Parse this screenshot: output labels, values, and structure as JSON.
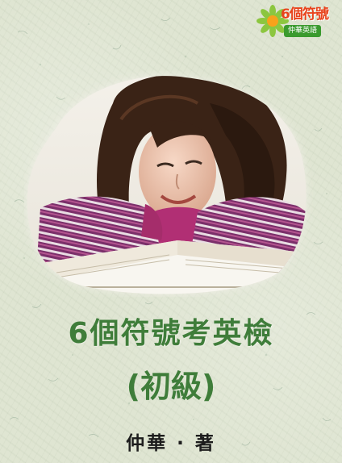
{
  "logo": {
    "title": "6個符號",
    "subtitle": "仲華英語",
    "icon": "sunflower-icon",
    "colors": {
      "petals": "#8cc63f",
      "center": "#f7a21b",
      "title": "#e8431c",
      "badge": "#3a9a2e"
    }
  },
  "cover": {
    "title": "6個符號考英檢",
    "subtitle": "(初級)",
    "author": "仲華 · 著",
    "colors": {
      "background": "#dfe5d2",
      "title": "#3f7d3a",
      "author": "#1d1d1d"
    }
  },
  "photo": {
    "subject": "smiling-woman-with-books-illustration"
  }
}
